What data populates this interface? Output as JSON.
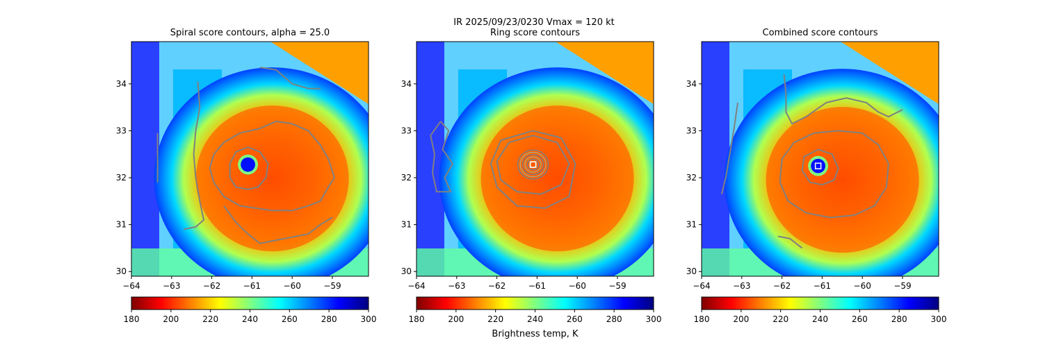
{
  "figure": {
    "suptitle_line1": "IR  2025/09/23/0230    Vmax = 120 kt"
  },
  "colorbar": {
    "label": "Brightness temp, K",
    "range": [
      180,
      300
    ],
    "ticks": [
      180,
      200,
      220,
      240,
      260,
      280,
      300
    ],
    "colormap": "jet_r",
    "stops": [
      "#800000",
      "#ff0000",
      "#ff8000",
      "#ffff00",
      "#80ff80",
      "#00ffff",
      "#0080ff",
      "#0000ff",
      "#000080"
    ]
  },
  "colors": {
    "contour": "#808080",
    "inner_contour": "#b0a878",
    "center_marker": "#ffffff"
  },
  "chart_data": [
    {
      "type": "heatmap",
      "title": "Spiral score contours, alpha = 25.0",
      "xlim": [
        -64.0,
        -58.1
      ],
      "ylim": [
        29.9,
        34.9
      ],
      "xticks": [
        -64,
        -63,
        -62,
        -61,
        -60,
        -59
      ],
      "yticks": [
        30,
        31,
        32,
        33,
        34
      ],
      "xtick_labels": [
        "−64",
        "−63",
        "−62",
        "−61",
        "−60",
        "−59"
      ],
      "ytick_labels": [
        "30",
        "31",
        "32",
        "33",
        "34"
      ],
      "eye_center": [
        -61.1,
        32.28
      ],
      "eye_radius_deg": 0.18,
      "show_center_marker": false,
      "contours": [
        {
          "name": "outer",
          "points": [
            [
              -60.8,
              33.05
            ],
            [
              -60.4,
              33.2
            ],
            [
              -60.0,
              33.15
            ],
            [
              -59.6,
              33.0
            ],
            [
              -59.3,
              32.7
            ],
            [
              -59.1,
              32.4
            ],
            [
              -58.95,
              32.0
            ],
            [
              -59.1,
              31.8
            ],
            [
              -59.3,
              31.5
            ],
            [
              -59.6,
              31.4
            ],
            [
              -60.0,
              31.3
            ],
            [
              -60.5,
              31.3
            ],
            [
              -60.9,
              31.35
            ],
            [
              -61.3,
              31.4
            ],
            [
              -61.7,
              31.6
            ],
            [
              -61.95,
              31.9
            ],
            [
              -62.05,
              32.2
            ],
            [
              -61.95,
              32.5
            ],
            [
              -61.7,
              32.75
            ],
            [
              -61.3,
              32.95
            ],
            [
              -60.8,
              33.05
            ]
          ]
        },
        {
          "name": "ring",
          "points": [
            [
              -61.1,
              32.65
            ],
            [
              -60.8,
              32.55
            ],
            [
              -60.6,
              32.3
            ],
            [
              -60.65,
              32.0
            ],
            [
              -60.85,
              31.8
            ],
            [
              -61.1,
              31.75
            ],
            [
              -61.4,
              31.8
            ],
            [
              -61.55,
              32.0
            ],
            [
              -61.55,
              32.3
            ],
            [
              -61.4,
              32.55
            ],
            [
              -61.1,
              32.65
            ]
          ]
        },
        {
          "name": "north-arc",
          "points": [
            [
              -60.8,
              34.35
            ],
            [
              -60.4,
              34.3
            ],
            [
              -60.0,
              34.0
            ],
            [
              -59.6,
              33.9
            ],
            [
              -59.3,
              33.9
            ]
          ]
        },
        {
          "name": "south-arc",
          "points": [
            [
              -61.7,
              31.4
            ],
            [
              -61.4,
              31.05
            ],
            [
              -61.1,
              30.8
            ],
            [
              -60.8,
              30.6
            ],
            [
              -60.2,
              30.7
            ],
            [
              -59.6,
              30.8
            ],
            [
              -59.3,
              31.0
            ],
            [
              -59.0,
              31.15
            ]
          ]
        },
        {
          "name": "west-band",
          "points": [
            [
              -62.35,
              34.05
            ],
            [
              -62.3,
              33.5
            ],
            [
              -62.4,
              33.0
            ],
            [
              -62.45,
              32.5
            ],
            [
              -62.4,
              32.0
            ],
            [
              -62.3,
              31.5
            ],
            [
              -62.2,
              31.1
            ],
            [
              -62.4,
              30.95
            ],
            [
              -62.7,
              30.9
            ]
          ]
        },
        {
          "name": "far-west",
          "points": [
            [
              -63.35,
              32.95
            ],
            [
              -63.35,
              32.5
            ],
            [
              -63.35,
              31.9
            ]
          ]
        }
      ]
    },
    {
      "type": "heatmap",
      "title": "Ring score contours",
      "xlim": [
        -64.0,
        -58.1
      ],
      "ylim": [
        29.9,
        34.9
      ],
      "xticks": [
        -64,
        -63,
        -62,
        -61,
        -60,
        -59
      ],
      "yticks": [
        30,
        31,
        32,
        33,
        34
      ],
      "xtick_labels": [
        "−64",
        "−63",
        "−62",
        "−61",
        "−60",
        "−59"
      ],
      "ytick_labels": [
        "30",
        "31",
        "32",
        "33",
        "34"
      ],
      "eye_center": [
        -61.1,
        32.28
      ],
      "eye_radius_deg": 0.0,
      "show_center_marker": true,
      "contours": [
        {
          "name": "ring-1",
          "points": [
            [
              -61.1,
              32.9
            ],
            [
              -60.5,
              32.75
            ],
            [
              -60.2,
              32.3
            ],
            [
              -60.4,
              31.85
            ],
            [
              -60.9,
              31.65
            ],
            [
              -61.5,
              31.7
            ],
            [
              -61.9,
              31.95
            ],
            [
              -62.0,
              32.35
            ],
            [
              -61.7,
              32.75
            ],
            [
              -61.1,
              32.9
            ]
          ]
        },
        {
          "name": "ring-2",
          "points": [
            [
              -61.1,
              33.0
            ],
            [
              -60.4,
              32.85
            ],
            [
              -60.05,
              32.3
            ],
            [
              -60.2,
              31.6
            ],
            [
              -60.8,
              31.35
            ],
            [
              -61.5,
              31.4
            ],
            [
              -62.0,
              31.8
            ],
            [
              -62.15,
              32.3
            ],
            [
              -61.9,
              32.8
            ],
            [
              -61.1,
              33.0
            ]
          ]
        },
        {
          "name": "west-cluster",
          "points": [
            [
              -63.4,
              33.2
            ],
            [
              -63.2,
              33.0
            ],
            [
              -63.35,
              32.6
            ],
            [
              -63.1,
              32.3
            ],
            [
              -63.3,
              32.0
            ],
            [
              -63.15,
              31.7
            ],
            [
              -63.5,
              31.7
            ],
            [
              -63.6,
              32.1
            ],
            [
              -63.55,
              32.5
            ],
            [
              -63.65,
              32.9
            ],
            [
              -63.4,
              33.2
            ]
          ]
        }
      ],
      "inner_rings_deg": [
        0.08,
        0.14,
        0.2,
        0.26,
        0.32,
        0.38
      ]
    },
    {
      "type": "heatmap",
      "title": "Combined score contours",
      "xlim": [
        -64.0,
        -58.1
      ],
      "ylim": [
        29.9,
        34.9
      ],
      "xticks": [
        -64,
        -63,
        -62,
        -61,
        -60,
        -59
      ],
      "yticks": [
        30,
        31,
        32,
        33,
        34
      ],
      "xtick_labels": [
        "−64",
        "−63",
        "−62",
        "−61",
        "−60",
        "−59"
      ],
      "ytick_labels": [
        "30",
        "31",
        "32",
        "33",
        "34"
      ],
      "eye_center": [
        -61.1,
        32.25
      ],
      "eye_radius_deg": 0.18,
      "show_center_marker": true,
      "contours": [
        {
          "name": "outer",
          "points": [
            [
              -60.6,
              33.0
            ],
            [
              -60.0,
              32.95
            ],
            [
              -59.6,
              32.7
            ],
            [
              -59.35,
              32.3
            ],
            [
              -59.4,
              31.8
            ],
            [
              -59.7,
              31.4
            ],
            [
              -60.2,
              31.2
            ],
            [
              -60.8,
              31.15
            ],
            [
              -61.4,
              31.25
            ],
            [
              -61.85,
              31.5
            ],
            [
              -62.05,
              31.9
            ],
            [
              -62.0,
              32.4
            ],
            [
              -61.7,
              32.75
            ],
            [
              -61.2,
              32.95
            ],
            [
              -60.6,
              33.0
            ]
          ]
        },
        {
          "name": "ring",
          "points": [
            [
              -61.1,
              32.6
            ],
            [
              -60.75,
              32.5
            ],
            [
              -60.6,
              32.2
            ],
            [
              -60.7,
              31.95
            ],
            [
              -61.0,
              31.85
            ],
            [
              -61.3,
              31.9
            ],
            [
              -61.5,
              32.15
            ],
            [
              -61.45,
              32.45
            ],
            [
              -61.1,
              32.6
            ]
          ]
        },
        {
          "name": "north-arc",
          "points": [
            [
              -61.95,
              34.2
            ],
            [
              -61.9,
              33.8
            ],
            [
              -61.9,
              33.4
            ],
            [
              -61.75,
              33.15
            ],
            [
              -61.4,
              33.3
            ],
            [
              -60.9,
              33.6
            ],
            [
              -60.4,
              33.7
            ],
            [
              -59.9,
              33.6
            ],
            [
              -59.6,
              33.4
            ],
            [
              -59.35,
              33.3
            ],
            [
              -59.0,
              33.45
            ]
          ]
        },
        {
          "name": "west-band",
          "points": [
            [
              -63.1,
              33.6
            ],
            [
              -63.2,
              33.0
            ],
            [
              -63.3,
              32.5
            ],
            [
              -63.4,
              32.0
            ],
            [
              -63.5,
              31.65
            ]
          ]
        },
        {
          "name": "south-arc",
          "points": [
            [
              -62.1,
              30.75
            ],
            [
              -61.8,
              30.7
            ],
            [
              -61.5,
              30.5
            ]
          ]
        }
      ]
    }
  ]
}
